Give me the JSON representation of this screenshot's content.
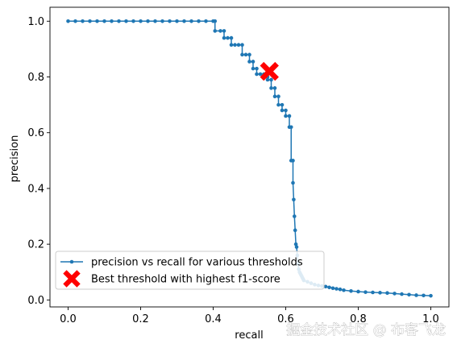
{
  "chart_data": {
    "type": "line",
    "xlabel": "recall",
    "ylabel": "precision",
    "xlim": [
      -0.05,
      1.05
    ],
    "ylim": [
      -0.025,
      1.05
    ],
    "xticks": [
      0.0,
      0.2,
      0.4,
      0.6,
      0.8,
      1.0
    ],
    "xtick_labels": [
      "0.0",
      "0.2",
      "0.4",
      "0.6",
      "0.8",
      "1.0"
    ],
    "yticks": [
      0.0,
      0.2,
      0.4,
      0.6,
      0.8,
      1.0
    ],
    "ytick_labels": [
      "0.0",
      "0.2",
      "0.4",
      "0.6",
      "0.8",
      "1.0"
    ],
    "grid": false,
    "legend_position": "lower-left",
    "series": [
      {
        "name": "precision vs recall for various thresholds",
        "color": "#1f77b4",
        "marker": "circle",
        "x": [
          0.0,
          0.02,
          0.04,
          0.06,
          0.08,
          0.1,
          0.12,
          0.14,
          0.16,
          0.18,
          0.2,
          0.22,
          0.24,
          0.26,
          0.28,
          0.3,
          0.32,
          0.34,
          0.36,
          0.38,
          0.4,
          0.405,
          0.405,
          0.42,
          0.43,
          0.43,
          0.44,
          0.45,
          0.45,
          0.46,
          0.47,
          0.48,
          0.48,
          0.49,
          0.5,
          0.5,
          0.51,
          0.51,
          0.52,
          0.52,
          0.53,
          0.54,
          0.54,
          0.55,
          0.55,
          0.56,
          0.56,
          0.57,
          0.57,
          0.58,
          0.58,
          0.59,
          0.59,
          0.6,
          0.6,
          0.61,
          0.61,
          0.615,
          0.615,
          0.62,
          0.62,
          0.622,
          0.624,
          0.626,
          0.628,
          0.63,
          0.632,
          0.634,
          0.636,
          0.638,
          0.64,
          0.642,
          0.644,
          0.646,
          0.648,
          0.65,
          0.66,
          0.67,
          0.68,
          0.69,
          0.7,
          0.71,
          0.72,
          0.73,
          0.74,
          0.75,
          0.76,
          0.78,
          0.8,
          0.82,
          0.84,
          0.86,
          0.88,
          0.9,
          0.92,
          0.94,
          0.96,
          0.98,
          1.0
        ],
        "y": [
          1.0,
          1.0,
          1.0,
          1.0,
          1.0,
          1.0,
          1.0,
          1.0,
          1.0,
          1.0,
          1.0,
          1.0,
          1.0,
          1.0,
          1.0,
          1.0,
          1.0,
          1.0,
          1.0,
          1.0,
          1.0,
          1.0,
          0.965,
          0.965,
          0.965,
          0.94,
          0.94,
          0.94,
          0.915,
          0.915,
          0.915,
          0.915,
          0.88,
          0.88,
          0.88,
          0.855,
          0.855,
          0.83,
          0.83,
          0.81,
          0.81,
          0.81,
          0.8,
          0.8,
          0.79,
          0.79,
          0.76,
          0.76,
          0.73,
          0.73,
          0.7,
          0.7,
          0.68,
          0.68,
          0.66,
          0.66,
          0.62,
          0.62,
          0.5,
          0.5,
          0.42,
          0.36,
          0.3,
          0.25,
          0.2,
          0.19,
          0.16,
          0.13,
          0.11,
          0.1,
          0.095,
          0.09,
          0.085,
          0.08,
          0.075,
          0.07,
          0.065,
          0.06,
          0.055,
          0.052,
          0.05,
          0.048,
          0.045,
          0.042,
          0.04,
          0.038,
          0.035,
          0.032,
          0.03,
          0.028,
          0.027,
          0.026,
          0.025,
          0.023,
          0.021,
          0.019,
          0.017,
          0.016,
          0.015
        ]
      },
      {
        "name": "Best threshold with highest f1-score",
        "color": "#ff0000",
        "marker": "X",
        "x": [
          0.555
        ],
        "y": [
          0.82
        ]
      }
    ]
  },
  "watermark": "掘金技术社区 @ 布客飞龙"
}
